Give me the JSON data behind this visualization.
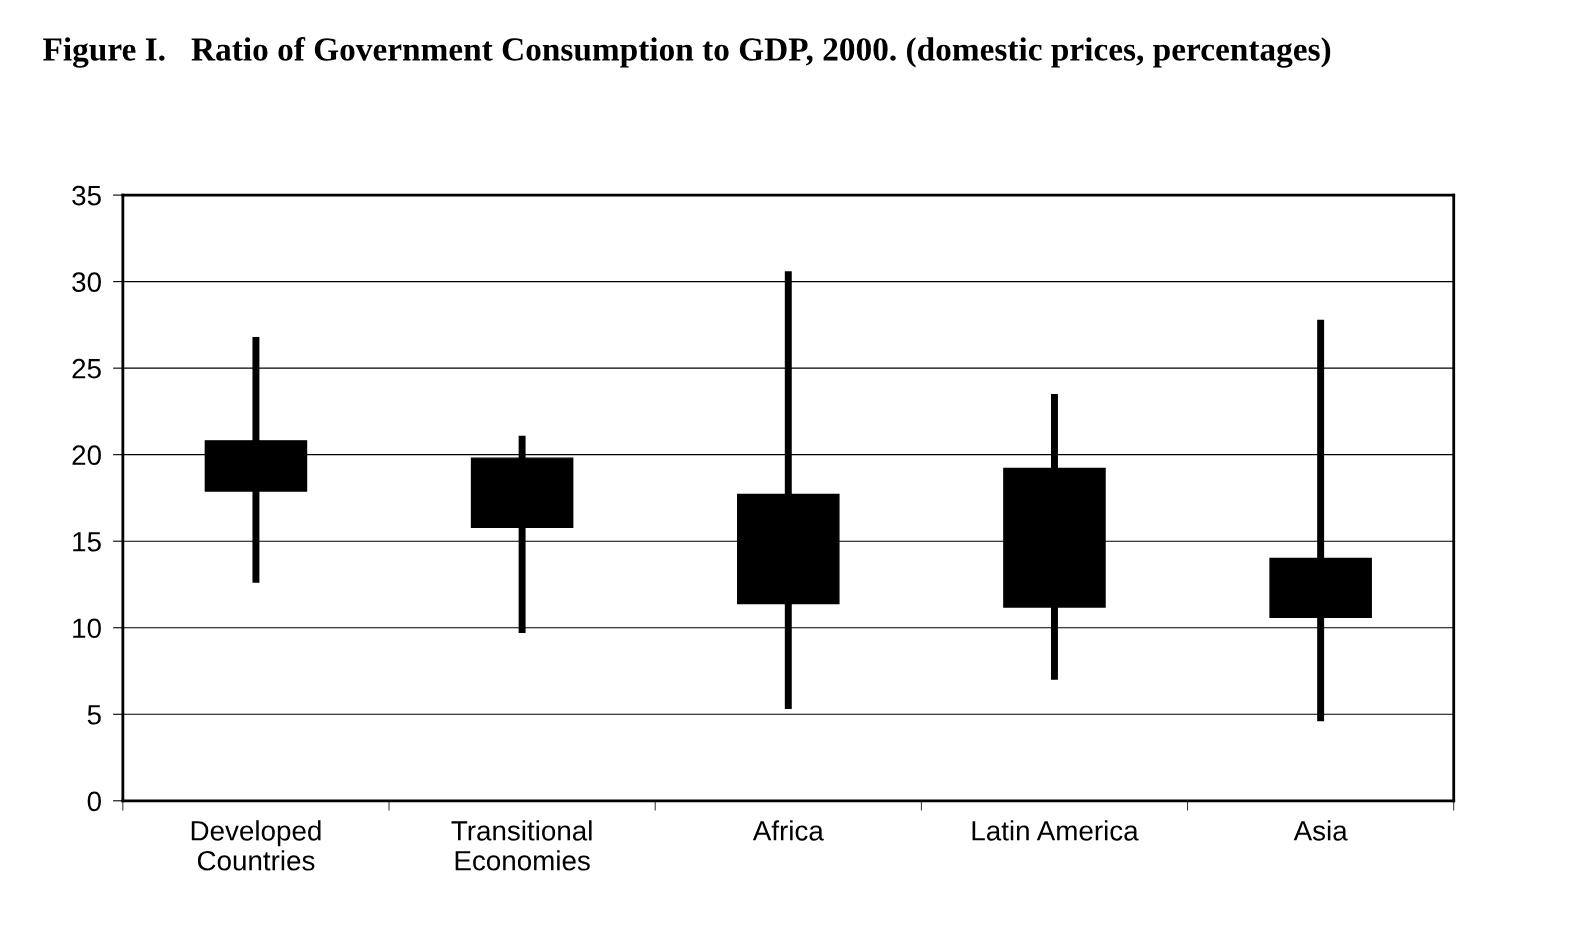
{
  "chart_data": {
    "type": "candlestick",
    "title": "Figure I.   Ratio of Government Consumption to GDP, 2000. (domestic prices, percentages)",
    "categories": [
      "Developed\nCountries",
      "Transitional\nEconomies",
      "Africa",
      "Latin America",
      "Asia"
    ],
    "ohlc": [
      [
        20.8,
        26.8,
        12.6,
        17.9
      ],
      [
        19.8,
        21.1,
        9.7,
        15.8
      ],
      [
        17.7,
        30.6,
        5.3,
        11.4
      ],
      [
        19.2,
        23.5,
        7.0,
        11.2
      ],
      [
        14.0,
        27.8,
        4.6,
        10.6
      ]
    ],
    "color": "#000000",
    "ylim": [
      0,
      35
    ],
    "yticks": [
      0,
      5,
      10,
      15,
      20,
      25,
      30,
      35
    ],
    "grid": "y",
    "legend": false
  }
}
